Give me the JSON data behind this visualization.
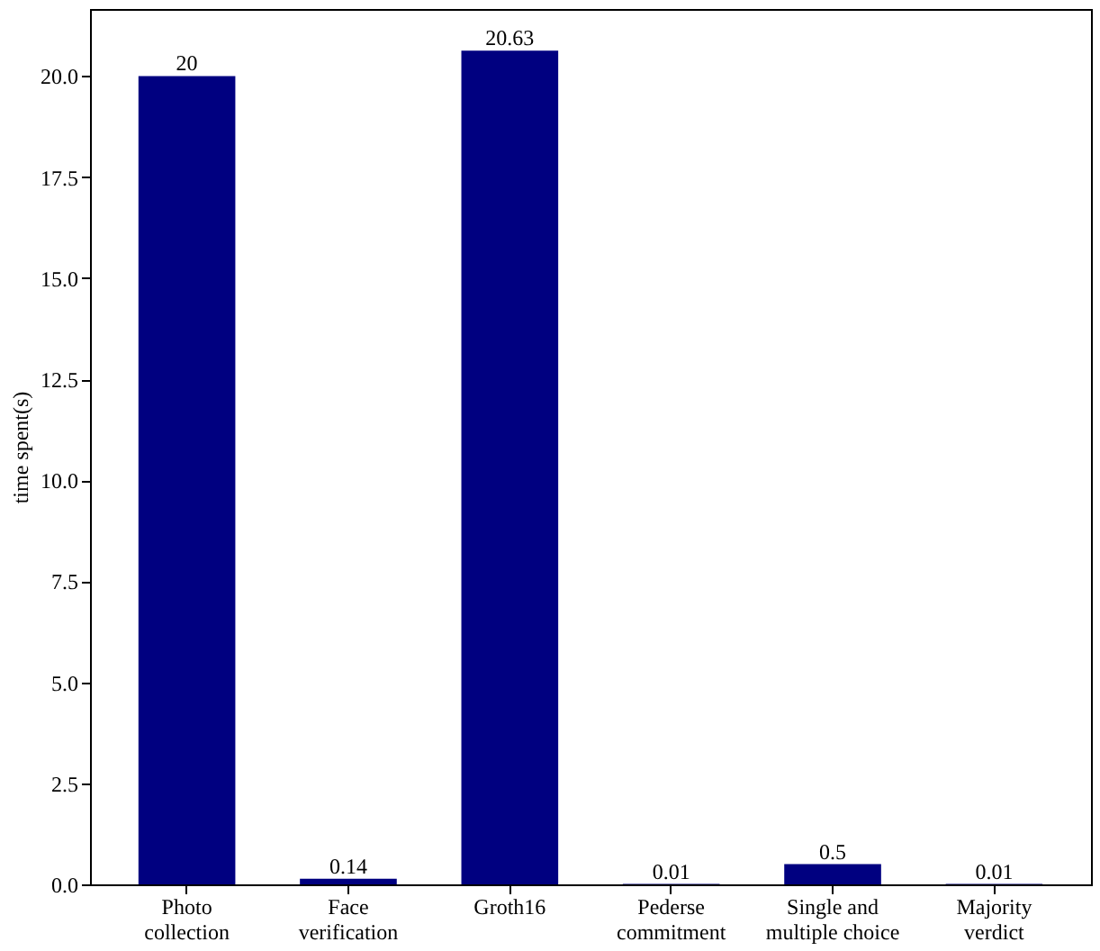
{
  "chart_data": {
    "type": "bar",
    "ylabel": "time spent(s)",
    "categories": [
      "Photo\ncollection",
      "Face\nverification",
      "Groth16",
      "Pederse\ncommitment",
      "Single and\nmultiple choice",
      "Majority\nverdict"
    ],
    "values": [
      20,
      0.14,
      20.63,
      0.01,
      0.5,
      0.01
    ],
    "color": "#000080",
    "ylim": [
      0,
      21.66
    ],
    "yticks": [
      {
        "value": 0,
        "label": "0.0"
      },
      {
        "value": 2.5,
        "label": "2.5"
      },
      {
        "value": 5,
        "label": "5.0"
      },
      {
        "value": 7.5,
        "label": "7.5"
      },
      {
        "value": 10,
        "label": "10.0"
      },
      {
        "value": 12.5,
        "label": "12.5"
      },
      {
        "value": 15,
        "label": "15.0"
      },
      {
        "value": 17.5,
        "label": "17.5"
      },
      {
        "value": 20,
        "label": "20.0"
      }
    ],
    "data_labels": true,
    "grid": false
  }
}
